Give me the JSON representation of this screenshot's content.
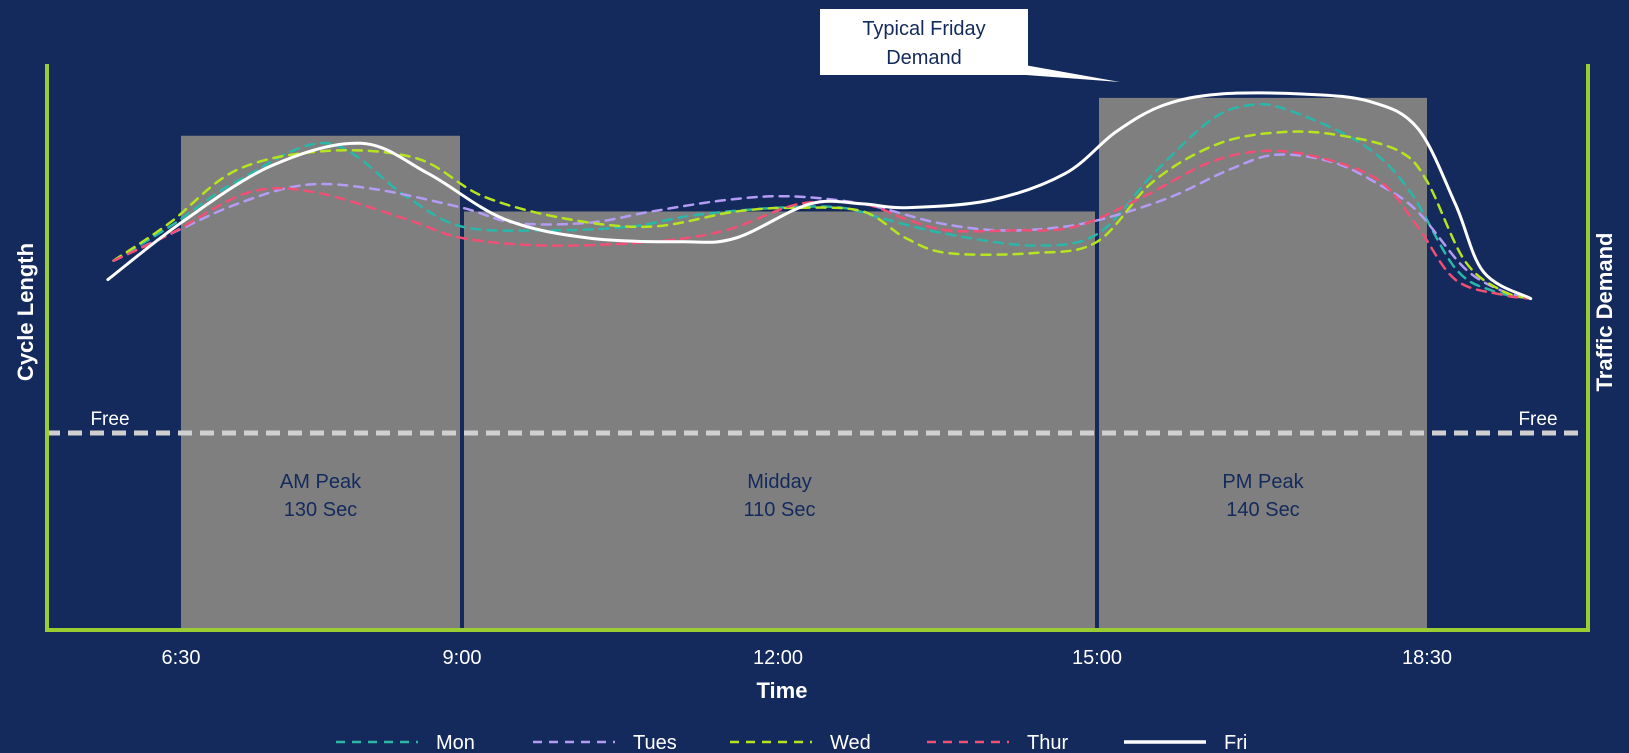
{
  "chart_data": {
    "type": "line",
    "x_axis": {
      "title": "Time",
      "ticks": [
        "6:30",
        "9:00",
        "12:00",
        "15:00",
        "18:30"
      ],
      "tick_hours": [
        6.5,
        9,
        12,
        15,
        18.5
      ]
    },
    "y_axis_left": {
      "title": "Cycle Length"
    },
    "y_axis_right": {
      "title": "Traffic Demand"
    },
    "free_line": {
      "label_left": "Free",
      "label_right": "Free"
    },
    "timing_plans": [
      {
        "name": "AM Peak",
        "cycle": "130 Sec",
        "start": 6.5,
        "end": 9,
        "cycle_sec": 130
      },
      {
        "name": "Midday",
        "cycle": "110 Sec",
        "start": 9,
        "end": 15,
        "cycle_sec": 110
      },
      {
        "name": "PM Peak",
        "cycle": "140 Sec",
        "start": 15,
        "end": 18.5,
        "cycle_sec": 140
      }
    ],
    "callout": {
      "line1": "Typical Friday",
      "line2": "Demand"
    },
    "series": [
      {
        "name": "Mon",
        "color": "#2ab7a9",
        "dash": true,
        "points": [
          [
            5.9,
            97
          ],
          [
            6.4,
            106
          ],
          [
            7.0,
            118
          ],
          [
            7.8,
            128
          ],
          [
            8.5,
            114
          ],
          [
            9.0,
            106
          ],
          [
            9.8,
            105
          ],
          [
            10.6,
            106
          ],
          [
            11.2,
            109
          ],
          [
            12.0,
            111
          ],
          [
            12.6,
            111
          ],
          [
            13.0,
            108
          ],
          [
            13.6,
            104
          ],
          [
            14.4,
            101
          ],
          [
            15.0,
            104
          ],
          [
            15.6,
            120
          ],
          [
            16.2,
            134
          ],
          [
            16.6,
            138
          ],
          [
            17.0,
            137
          ],
          [
            17.8,
            128
          ],
          [
            18.3,
            116
          ],
          [
            18.8,
            95
          ],
          [
            19.2,
            89
          ],
          [
            19.6,
            87
          ]
        ]
      },
      {
        "name": "Tues",
        "color": "#b49cf5",
        "dash": true,
        "points": [
          [
            5.9,
            97
          ],
          [
            6.4,
            104
          ],
          [
            7.0,
            112
          ],
          [
            7.6,
            117
          ],
          [
            8.2,
            116
          ],
          [
            9.0,
            111
          ],
          [
            9.5,
            107
          ],
          [
            10.2,
            107
          ],
          [
            10.8,
            110
          ],
          [
            11.5,
            113
          ],
          [
            12.1,
            114
          ],
          [
            12.8,
            112
          ],
          [
            13.5,
            107
          ],
          [
            14.1,
            105
          ],
          [
            14.7,
            106
          ],
          [
            15.2,
            109
          ],
          [
            15.8,
            114
          ],
          [
            16.4,
            121
          ],
          [
            16.9,
            125
          ],
          [
            17.5,
            123
          ],
          [
            18.0,
            117
          ],
          [
            18.4,
            110
          ],
          [
            18.9,
            95
          ],
          [
            19.3,
            89
          ],
          [
            19.6,
            87
          ]
        ]
      },
      {
        "name": "Wed",
        "color": "#b6e51f",
        "dash": true,
        "points": [
          [
            5.9,
            97
          ],
          [
            6.4,
            107
          ],
          [
            7.0,
            121
          ],
          [
            7.8,
            126
          ],
          [
            8.6,
            124
          ],
          [
            9.2,
            114
          ],
          [
            10.0,
            108
          ],
          [
            10.8,
            106
          ],
          [
            11.6,
            110
          ],
          [
            12.2,
            111
          ],
          [
            12.8,
            110
          ],
          [
            13.2,
            103
          ],
          [
            13.6,
            99
          ],
          [
            14.4,
            99
          ],
          [
            15.0,
            102
          ],
          [
            15.6,
            118
          ],
          [
            16.3,
            128
          ],
          [
            17.0,
            131
          ],
          [
            17.6,
            130
          ],
          [
            18.2,
            126
          ],
          [
            18.5,
            118
          ],
          [
            18.9,
            97
          ],
          [
            19.3,
            89
          ],
          [
            19.6,
            87
          ]
        ]
      },
      {
        "name": "Thur",
        "color": "#f05075",
        "dash": true,
        "points": [
          [
            5.9,
            97
          ],
          [
            6.4,
            104
          ],
          [
            7.1,
            115
          ],
          [
            7.7,
            115
          ],
          [
            8.5,
            108
          ],
          [
            9.0,
            103
          ],
          [
            9.8,
            101
          ],
          [
            10.8,
            102
          ],
          [
            11.5,
            105
          ],
          [
            12.2,
            112
          ],
          [
            12.8,
            112
          ],
          [
            13.2,
            108
          ],
          [
            13.6,
            105
          ],
          [
            14.2,
            105
          ],
          [
            14.8,
            106
          ],
          [
            15.5,
            114
          ],
          [
            16.2,
            123
          ],
          [
            16.8,
            126
          ],
          [
            17.4,
            124
          ],
          [
            18.0,
            118
          ],
          [
            18.4,
            106
          ],
          [
            18.8,
            92
          ],
          [
            19.3,
            88
          ],
          [
            19.6,
            87
          ]
        ]
      },
      {
        "name": "Fri",
        "color": "#ffffff",
        "dash": false,
        "points": [
          [
            5.85,
            92
          ],
          [
            6.5,
            107
          ],
          [
            7.3,
            122
          ],
          [
            8.1,
            128
          ],
          [
            8.7,
            120
          ],
          [
            9.4,
            108
          ],
          [
            10.2,
            103
          ],
          [
            11.1,
            102
          ],
          [
            11.6,
            103
          ],
          [
            12.3,
            112
          ],
          [
            12.8,
            112
          ],
          [
            13.2,
            111
          ],
          [
            14.0,
            113
          ],
          [
            14.7,
            120
          ],
          [
            15.2,
            131
          ],
          [
            15.7,
            138
          ],
          [
            16.3,
            141
          ],
          [
            17.2,
            141
          ],
          [
            17.9,
            139
          ],
          [
            18.4,
            132
          ],
          [
            18.8,
            112
          ],
          [
            19.1,
            94
          ],
          [
            19.6,
            87
          ]
        ]
      }
    ]
  }
}
